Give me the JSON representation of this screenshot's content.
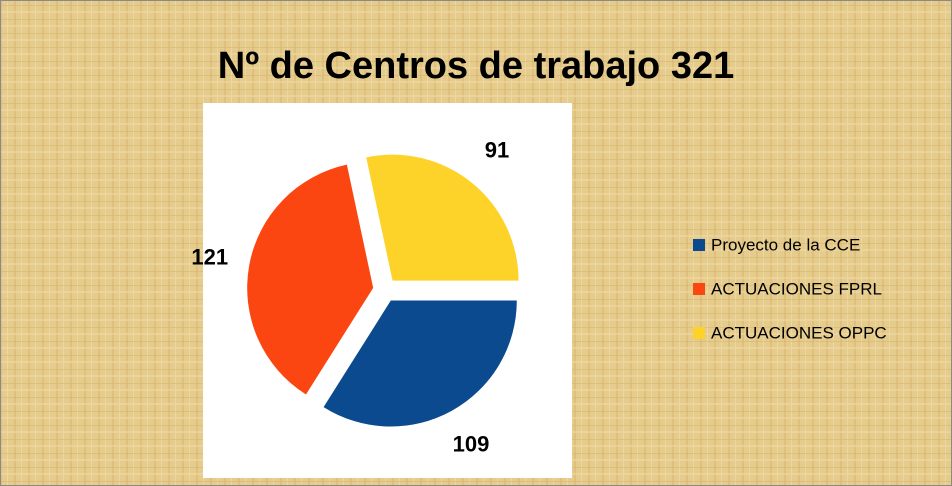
{
  "chart_data": {
    "type": "pie",
    "title": "Nº de Centros de trabajo 321",
    "categories": [
      "Proyecto de la CCE",
      "ACTUACIONES FPRL",
      "ACTUACIONES OPPC"
    ],
    "values": [
      109,
      121,
      91
    ],
    "colors": [
      "#0b4a8f",
      "#fc4611",
      "#fdd32a"
    ],
    "legend": "right"
  }
}
